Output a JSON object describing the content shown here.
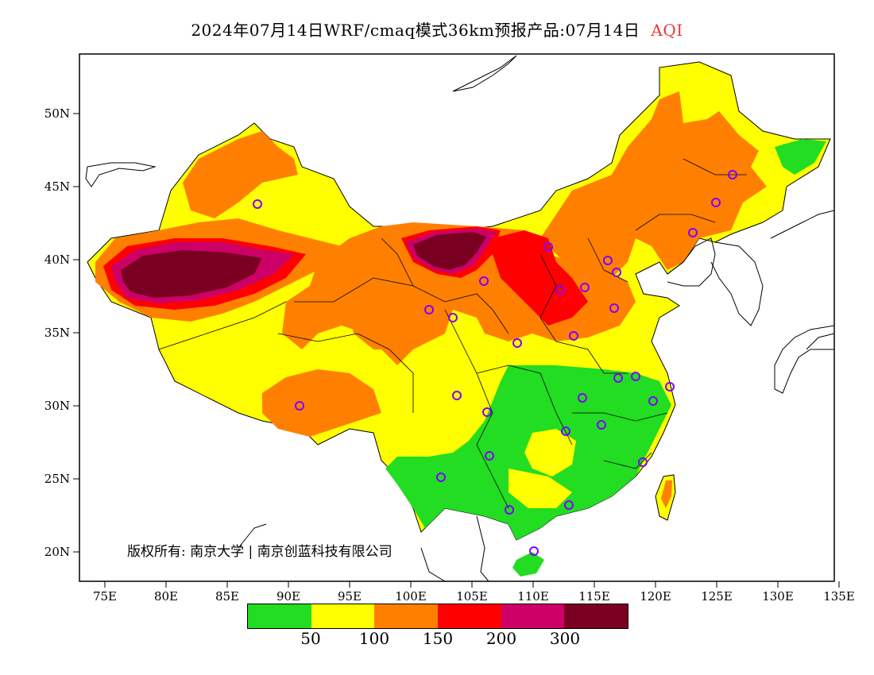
{
  "title": {
    "main": "2024年07月14日WRF/cmaq模式36km预报产品:07月14日",
    "variable": "AQI"
  },
  "axes": {
    "x_ticks": [
      "75E",
      "80E",
      "85E",
      "90E",
      "95E",
      "100E",
      "105E",
      "110E",
      "115E",
      "120E",
      "125E",
      "130E",
      "135E"
    ],
    "y_ticks": [
      "20N",
      "25N",
      "30N",
      "35N",
      "40N",
      "45N",
      "50N"
    ]
  },
  "legend": {
    "colors": [
      "#22dd22",
      "#ffff00",
      "#ff8000",
      "#ff0000",
      "#cc0066",
      "#7a0022"
    ],
    "tick_labels": [
      "50",
      "100",
      "150",
      "200",
      "300"
    ]
  },
  "copyright": "版权所有: 南京大学 | 南京创蓝科技有限公司",
  "colors": {
    "good": "#22dd22",
    "moderate": "#ffff00",
    "unhealthy_sensitive": "#ff8000",
    "unhealthy": "#ff0000",
    "very_unhealthy": "#cc0066",
    "hazardous": "#7a0022",
    "station": "#8000ff"
  }
}
